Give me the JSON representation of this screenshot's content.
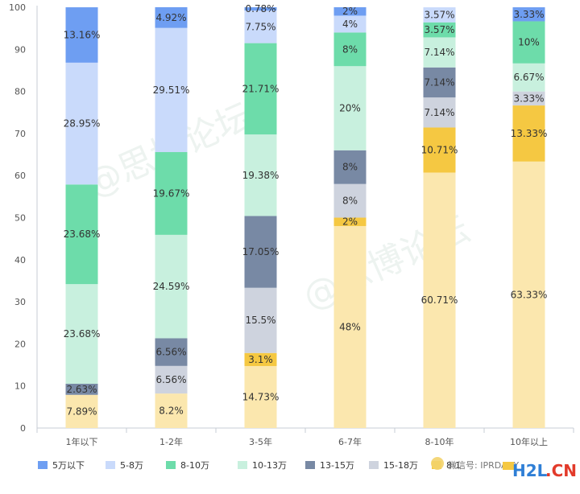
{
  "chart_data": {
    "type": "bar",
    "stacked": true,
    "categories": [
      "1年以下",
      "1-2年",
      "3-5年",
      "6-7年",
      "8-10年",
      "10年以上"
    ],
    "ylim": [
      0,
      100
    ],
    "yticks": [
      0,
      10,
      20,
      30,
      40,
      50,
      60,
      70,
      80,
      90,
      100
    ],
    "grid": false,
    "legend_position": "bottom",
    "series": [
      {
        "name": "5万以下",
        "color": "#6e9ef2",
        "values": [
          0,
          0,
          0,
          0,
          0,
          0
        ],
        "labels": [
          "",
          "",
          "",
          "",
          "",
          ""
        ]
      },
      {
        "name": "5-8万",
        "color": "#c9dafb",
        "values": [
          0,
          0,
          0,
          0,
          0,
          0
        ],
        "labels": [
          "",
          "",
          "",
          "",
          "",
          ""
        ]
      },
      {
        "name": "8-10万",
        "color": "#6ddcaa",
        "values": [
          0,
          0,
          0,
          0,
          0,
          0
        ],
        "labels": [
          "",
          "",
          "",
          "",
          "",
          ""
        ]
      },
      {
        "name": "10-13万",
        "color": "#c8f0de",
        "values": [
          0,
          0,
          0,
          0,
          0,
          0
        ],
        "labels": [
          "",
          "",
          "",
          "",
          "",
          ""
        ]
      },
      {
        "name": "13-15万",
        "color": "#7889a4",
        "values": [
          0,
          0,
          0,
          0,
          0,
          0
        ],
        "labels": [
          "",
          "",
          "",
          "",
          "",
          ""
        ]
      },
      {
        "name": "15-18万",
        "color": "#ced3de",
        "values": [
          0,
          0,
          0,
          0,
          0,
          0
        ],
        "labels": [
          "",
          "",
          "",
          "",
          "",
          ""
        ]
      },
      {
        "name": "",
        "color": "#f5c842",
        "values": [
          0,
          0,
          0,
          0,
          0,
          0
        ],
        "labels": [
          "",
          "",
          "",
          "",
          "",
          ""
        ]
      },
      {
        "name": "",
        "color": "#fbe7ae",
        "values": [
          0,
          0,
          0,
          0,
          0,
          0
        ],
        "labels": [
          "",
          "",
          "",
          "",
          "",
          ""
        ]
      }
    ],
    "stacks": [
      [
        [
          "5万以下",
          13.16,
          "13.16%"
        ],
        [
          "5-8万",
          28.95,
          "28.95%"
        ],
        [
          "8-10万",
          23.68,
          "23.68%"
        ],
        [
          "10-13万",
          23.68,
          "23.68%"
        ],
        [
          "13-15万",
          2.63,
          "2.63%"
        ],
        [
          "",
          7.89,
          "7.89%",
          7
        ]
      ],
      [
        [
          "5万以下",
          4.92,
          "4.92%"
        ],
        [
          "5-8万",
          29.51,
          "29.51%"
        ],
        [
          "8-10万",
          19.67,
          "19.67%"
        ],
        [
          "10-13万",
          24.59,
          "24.59%"
        ],
        [
          "13-15万",
          6.56,
          "6.56%"
        ],
        [
          "15-18万",
          6.56,
          "6.56%"
        ],
        [
          "",
          8.2,
          "8.2%",
          7
        ]
      ],
      [
        [
          "5万以下",
          0.78,
          "0.78%"
        ],
        [
          "5-8万",
          7.75,
          "7.75%"
        ],
        [
          "8-10万",
          21.71,
          "21.71%"
        ],
        [
          "10-13万",
          19.38,
          "19.38%"
        ],
        [
          "13-15万",
          17.05,
          "17.05%"
        ],
        [
          "15-18万",
          15.5,
          "15.5%"
        ],
        [
          "",
          3.1,
          "3.1%",
          6
        ],
        [
          "",
          14.73,
          "14.73%",
          7
        ]
      ],
      [
        [
          "5万以下",
          2,
          "2%"
        ],
        [
          "5-8万",
          4,
          "4%"
        ],
        [
          "8-10万",
          8,
          "8%"
        ],
        [
          "10-13万",
          20,
          "20%"
        ],
        [
          "13-15万",
          8,
          "8%"
        ],
        [
          "15-18万",
          8,
          "8%"
        ],
        [
          "",
          2,
          "2%",
          6
        ],
        [
          "",
          48,
          "48%",
          7
        ]
      ],
      [
        [
          "5-8万",
          3.57,
          "3.57%"
        ],
        [
          "8-10万",
          3.57,
          "3.57%"
        ],
        [
          "10-13万",
          7.14,
          "7.14%"
        ],
        [
          "13-15万",
          7.14,
          "7.14%"
        ],
        [
          "15-18万",
          7.14,
          "7.14%"
        ],
        [
          "",
          10.71,
          "10.71%",
          6
        ],
        [
          "",
          60.71,
          "60.71%",
          7
        ]
      ],
      [
        [
          "5万以下",
          3.33,
          "3.33%"
        ],
        [
          "8-10万",
          10,
          "10%"
        ],
        [
          "10-13万",
          6.67,
          "6.67%"
        ],
        [
          "15-18万",
          3.33,
          "3.33%"
        ],
        [
          "",
          13.33,
          "13.33%",
          6
        ],
        [
          "",
          63.33,
          "63.33%",
          7
        ]
      ]
    ],
    "legend_partial_label": "8-1",
    "watermark_text": "@思博论坛",
    "footer_watermark": "微信号: IPRDAILY",
    "brand_text_h2l": "H2L",
    "brand_text_cn": ".CN"
  }
}
